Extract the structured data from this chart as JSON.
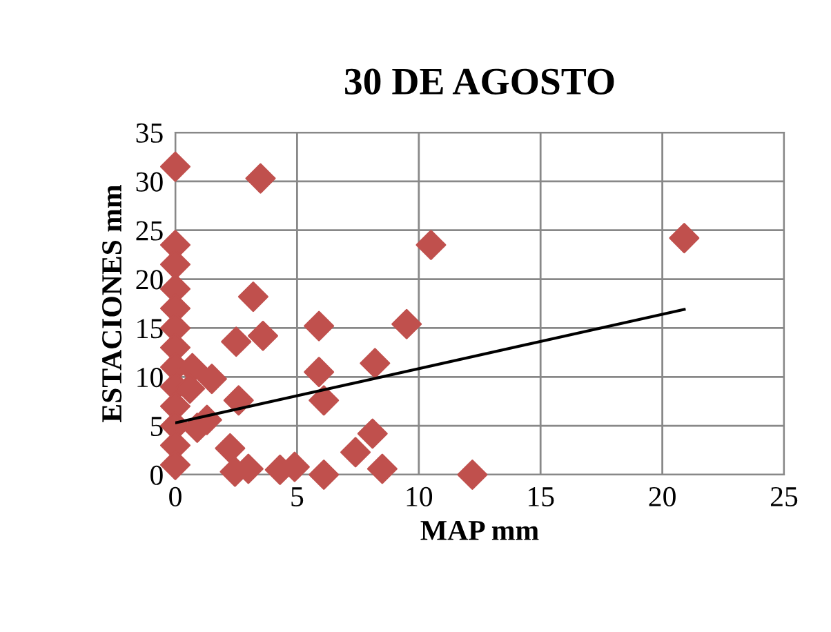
{
  "chart_data": {
    "type": "scatter",
    "title": "30 DE AGOSTO",
    "xlabel": "MAP mm",
    "ylabel": "ESTACIONES mm",
    "xlim": [
      0,
      25
    ],
    "xticks": [
      0,
      5,
      10,
      15,
      20,
      25
    ],
    "ylim": [
      0,
      35
    ],
    "yticks": [
      0,
      5,
      10,
      15,
      20,
      25,
      30,
      35
    ],
    "grid": true,
    "marker": "diamond",
    "series": [
      {
        "color": "#c0504d",
        "type": "scatter",
        "x": [
          0,
          0,
          0,
          0,
          0,
          0,
          0,
          0,
          0,
          0,
          0,
          0,
          0,
          3.5,
          0.7,
          1.5,
          0.6,
          1.3,
          0.9,
          2.5,
          3.6,
          3.2,
          2.6,
          2.25,
          2.45,
          3.0,
          4.3,
          4.9,
          6.1,
          7.4,
          8.1,
          8.5,
          12.2,
          8.2,
          5.9,
          6.1,
          5.9,
          9.5,
          10.5,
          20.9
        ],
        "values": [
          31.5,
          23.5,
          21.5,
          19,
          17,
          15,
          13,
          11,
          9,
          7,
          5,
          3,
          1,
          30.3,
          10.9,
          9.8,
          8.8,
          5.6,
          4.8,
          13.6,
          14.2,
          18.2,
          7.6,
          2.7,
          0.3,
          0.6,
          0.5,
          0.8,
          0,
          2.3,
          4.2,
          0.6,
          0,
          11.4,
          10.5,
          7.6,
          15.2,
          15.4,
          23.5,
          24.2
        ]
      },
      {
        "color": "#000000",
        "type": "line",
        "x": [
          0,
          20.9
        ],
        "values": [
          5.3,
          16.9
        ],
        "marker": "none",
        "line_style": "solid"
      }
    ]
  }
}
